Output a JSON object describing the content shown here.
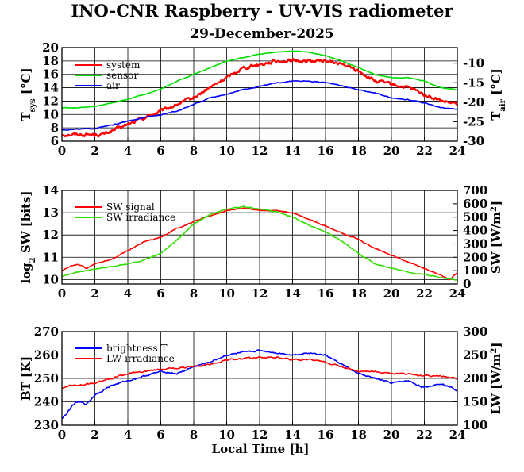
{
  "figure": {
    "title": "INO-CNR Raspberry - UV-VIS radiometer",
    "date": "29-December-2025",
    "xlabel": "Local Time [h]"
  },
  "chart_data": [
    {
      "type": "line",
      "panel": "temperature",
      "x_range": [
        0,
        24
      ],
      "x_ticks": [
        "0",
        "2",
        "4",
        "6",
        "8",
        "10",
        "12",
        "14",
        "16",
        "18",
        "20",
        "22",
        "24"
      ],
      "ylabel_left": "T_sys [°C]",
      "ylabel_right": "T_air [°C]",
      "ylim_left": [
        6,
        20
      ],
      "ylim_right": [
        -30,
        -6
      ],
      "y_ticks_left": [
        "6",
        "8",
        "10",
        "12",
        "14",
        "16",
        "18",
        "20"
      ],
      "y_ticks_right": [
        "-30",
        "-25",
        "-20",
        "-15",
        "-10"
      ],
      "legend": "top-left",
      "series": [
        {
          "name": "system",
          "color": "#ff0000",
          "axis": "left",
          "noise": 0.45,
          "x": [
            0,
            1,
            2,
            2.5,
            3,
            4,
            5,
            6,
            7,
            8,
            9,
            10,
            11,
            12,
            13,
            14,
            15,
            16,
            17,
            18,
            19,
            20,
            21,
            22,
            23,
            24
          ],
          "y": [
            7,
            7,
            7,
            7,
            7.5,
            8.5,
            9.5,
            10.5,
            11.5,
            12.5,
            14,
            15.5,
            17,
            17.5,
            18,
            18,
            18,
            18,
            17.5,
            16.5,
            15,
            14.5,
            14,
            13,
            12,
            11.5
          ]
        },
        {
          "name": "sensor",
          "color": "#00dd00",
          "axis": "left",
          "noise": 0.08,
          "x": [
            0,
            1,
            2,
            3,
            4,
            5,
            6,
            7,
            8,
            9,
            10,
            11,
            12,
            13,
            14,
            15,
            16,
            17,
            18,
            19,
            20,
            21,
            22,
            23,
            24
          ],
          "y": [
            11,
            11,
            11.2,
            11.7,
            12.3,
            13,
            13.8,
            15,
            16,
            17,
            18,
            18.5,
            19,
            19.3,
            19.5,
            19.3,
            18.8,
            18,
            17,
            16,
            15.5,
            15.5,
            15,
            14,
            13.7
          ]
        },
        {
          "name": "air",
          "color": "#0000ff",
          "axis": "left",
          "noise": 0.12,
          "x": [
            0,
            1,
            2,
            3,
            4,
            5,
            6,
            7,
            8,
            9,
            10,
            11,
            12,
            13,
            14,
            15,
            16,
            17,
            18,
            19,
            20,
            21,
            22,
            23,
            24
          ],
          "y": [
            7.7,
            7.8,
            7.9,
            8.4,
            9,
            9.5,
            10,
            10.5,
            11.5,
            12.5,
            13,
            13.7,
            14.2,
            14.7,
            15,
            15,
            14.8,
            14.3,
            13.7,
            13.2,
            12.5,
            12.2,
            11.7,
            11,
            10.8
          ]
        }
      ]
    },
    {
      "type": "line",
      "panel": "shortwave",
      "x_range": [
        0,
        24
      ],
      "x_ticks": [
        "0",
        "2",
        "4",
        "6",
        "8",
        "10",
        "12",
        "14",
        "16",
        "18",
        "20",
        "22",
        "24"
      ],
      "ylabel_left": "log2 SW [bits]",
      "ylabel_right": "SW [W/m2]",
      "ylim_left": [
        9.8,
        14
      ],
      "ylim_right": [
        0,
        700
      ],
      "y_ticks_left": [
        "10",
        "11",
        "12",
        "13",
        "14"
      ],
      "y_ticks_right": [
        "0",
        "100",
        "200",
        "300",
        "400",
        "500",
        "600",
        "700"
      ],
      "legend": "top-left",
      "series": [
        {
          "name": "SW signal",
          "color": "#ff0000",
          "axis": "left",
          "noise": 0.04,
          "x": [
            0,
            0.5,
            1,
            1.5,
            2,
            3,
            4,
            5,
            6,
            7,
            8,
            9,
            10,
            11,
            12,
            13,
            14,
            15,
            16,
            17,
            18,
            19,
            20,
            21,
            22,
            23,
            23.5,
            24
          ],
          "y": [
            10.4,
            10.6,
            10.7,
            10.5,
            10.7,
            10.9,
            11.3,
            11.7,
            11.9,
            12.3,
            12.6,
            12.85,
            13.1,
            13.2,
            13.1,
            13.1,
            13,
            12.7,
            12.4,
            12.1,
            11.8,
            11.4,
            11.1,
            10.8,
            10.5,
            10.2,
            10.0,
            10.3
          ]
        },
        {
          "name": "SW irradiance",
          "color": "#33dd00",
          "axis": "right",
          "noise": 6,
          "x": [
            0,
            1,
            2,
            3,
            4,
            5,
            6,
            7,
            8,
            9,
            10,
            11,
            12,
            13,
            14,
            15,
            16,
            17,
            18,
            19,
            20,
            21,
            22,
            23,
            24
          ],
          "y": [
            60,
            90,
            110,
            130,
            150,
            180,
            230,
            330,
            450,
            520,
            560,
            580,
            560,
            540,
            500,
            440,
            390,
            320,
            230,
            150,
            120,
            90,
            70,
            50,
            30
          ]
        }
      ]
    },
    {
      "type": "line",
      "panel": "longwave",
      "x_range": [
        0,
        24
      ],
      "x_ticks": [
        "0",
        "2",
        "4",
        "6",
        "8",
        "10",
        "12",
        "14",
        "16",
        "18",
        "20",
        "22",
        "24"
      ],
      "ylabel_left": "BT [K]",
      "ylabel_right": "LW [W/m2]",
      "ylim_left": [
        230,
        270
      ],
      "ylim_right": [
        100,
        300
      ],
      "y_ticks_left": [
        "230",
        "240",
        "250",
        "260",
        "270"
      ],
      "y_ticks_right": [
        "100",
        "150",
        "200",
        "250",
        "300"
      ],
      "legend": "top-left",
      "series": [
        {
          "name": "brightness T",
          "color": "#0000ff",
          "axis": "left",
          "noise": 0.6,
          "x": [
            0,
            0.3,
            0.7,
            1,
            1.5,
            2,
            3,
            4,
            5,
            6,
            7,
            8,
            9,
            10,
            11,
            12,
            13,
            14,
            15,
            16,
            17,
            18,
            19,
            20,
            21,
            22,
            23,
            24
          ],
          "y": [
            233,
            235,
            239,
            240,
            239,
            243,
            247,
            249,
            251,
            253,
            252,
            255,
            257,
            260,
            261,
            262,
            261,
            260,
            261,
            260,
            256,
            252,
            250,
            248,
            249,
            246,
            248,
            245
          ]
        },
        {
          "name": "LW irradiance",
          "color": "#ff0000",
          "axis": "right",
          "noise": 3,
          "x": [
            0,
            0.5,
            1,
            2,
            3,
            4,
            5,
            6,
            7,
            8,
            9,
            10,
            11,
            12,
            13,
            14,
            15,
            16,
            17,
            18,
            19,
            20,
            21,
            22,
            23,
            24
          ],
          "y": [
            180,
            185,
            185,
            190,
            200,
            210,
            215,
            220,
            222,
            225,
            230,
            240,
            242,
            245,
            245,
            240,
            240,
            235,
            225,
            215,
            215,
            210,
            210,
            205,
            205,
            200
          ]
        }
      ]
    }
  ]
}
